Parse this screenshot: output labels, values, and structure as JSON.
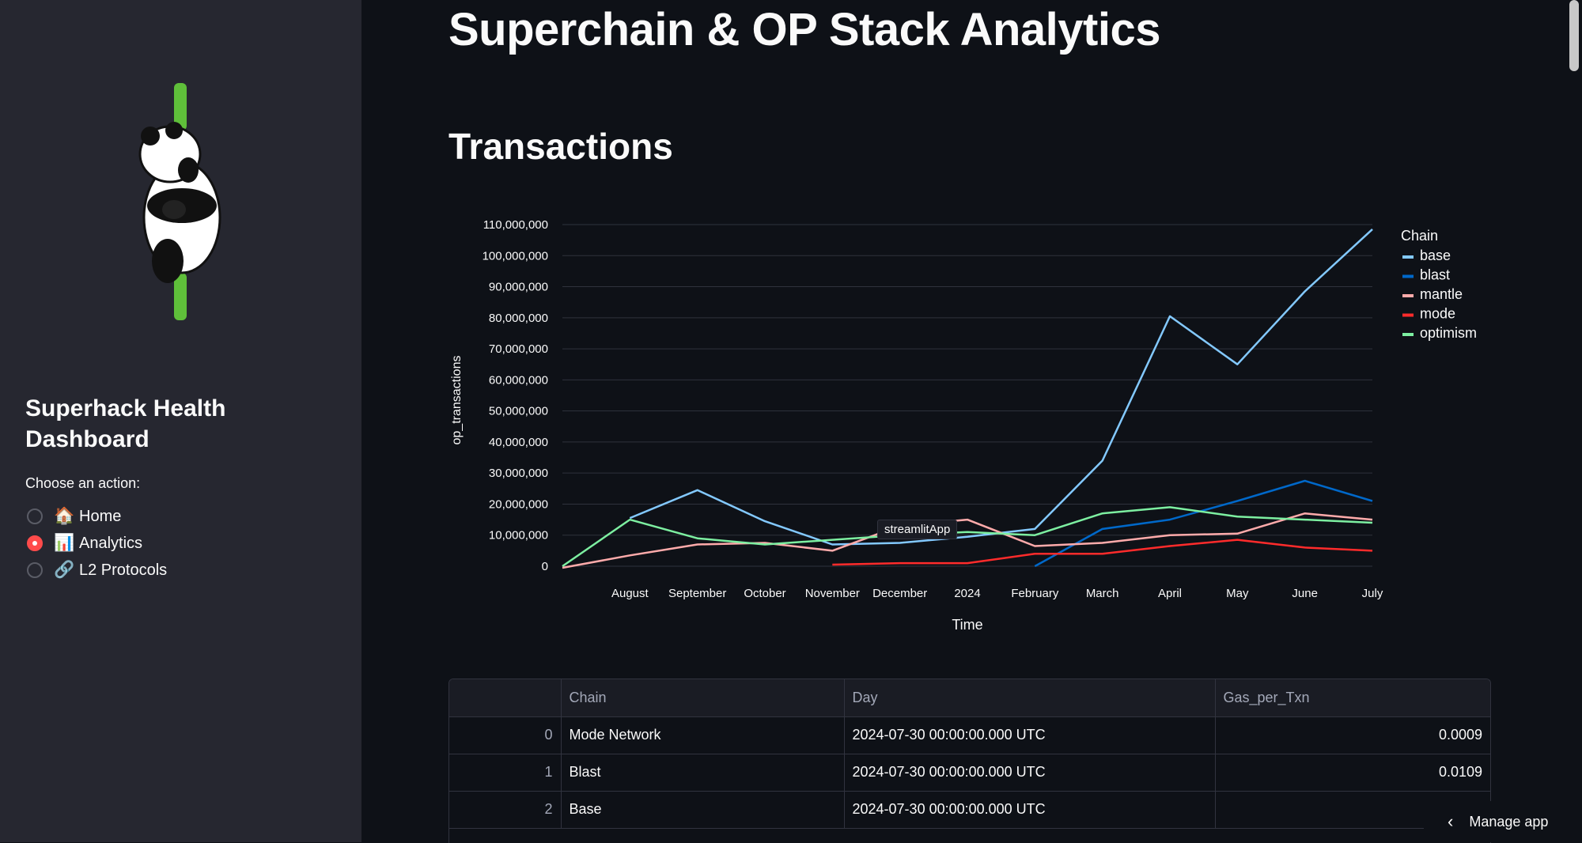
{
  "sidebar": {
    "title": "Superhack Health Dashboard",
    "choose_label": "Choose an action:",
    "options": [
      {
        "icon": "🏠",
        "label": "Home",
        "selected": false
      },
      {
        "icon": "📊",
        "label": "Analytics",
        "selected": true
      },
      {
        "icon": "🔗",
        "label": "L2 Protocols",
        "selected": false
      }
    ]
  },
  "main": {
    "page_title": "Superchain & OP Stack Analytics",
    "section_title": "Transactions"
  },
  "tooltip": "streamlitApp",
  "manage_app": "Manage app",
  "chart_data": {
    "type": "line",
    "xlabel": "Time",
    "ylabel": "op_transactions",
    "legend_title": "Chain",
    "ylim": [
      0,
      110000000
    ],
    "yticks": [
      0,
      10000000,
      20000000,
      30000000,
      40000000,
      50000000,
      60000000,
      70000000,
      80000000,
      90000000,
      100000000,
      110000000
    ],
    "ytick_labels": [
      "0",
      "10,000,000",
      "20,000,000",
      "30,000,000",
      "40,000,000",
      "50,000,000",
      "60,000,000",
      "70,000,000",
      "80,000,000",
      "90,000,000",
      "100,000,000",
      "110,000,000"
    ],
    "x_tick_labels": [
      "August",
      "September",
      "October",
      "November",
      "December",
      "2024",
      "February",
      "March",
      "April",
      "May",
      "June",
      "July"
    ],
    "x_tick_positions": [
      1,
      2,
      3,
      4,
      5,
      6,
      7,
      8,
      9,
      10,
      11,
      12
    ],
    "x": [
      0,
      1,
      2,
      3,
      4,
      5,
      6,
      7,
      8,
      9,
      10,
      11,
      12
    ],
    "series": [
      {
        "name": "base",
        "color": "#83c9ff",
        "values": [
          null,
          15500000,
          24500000,
          14500000,
          7000000,
          7500000,
          9500000,
          12000000,
          34000000,
          80500000,
          65000000,
          88500000,
          108500000
        ]
      },
      {
        "name": "blast",
        "color": "#0068c9",
        "values": [
          null,
          null,
          null,
          null,
          null,
          null,
          null,
          0,
          12000000,
          15000000,
          21000000,
          27500000,
          21000000
        ]
      },
      {
        "name": "mantle",
        "color": "#ffabab",
        "values": [
          -500000,
          3500000,
          7000000,
          7500000,
          5000000,
          13000000,
          15000000,
          6500000,
          7500000,
          10000000,
          10500000,
          17000000,
          15000000
        ]
      },
      {
        "name": "mode",
        "color": "#ff2b2b",
        "values": [
          null,
          null,
          null,
          null,
          500000,
          1000000,
          1000000,
          4000000,
          4000000,
          6500000,
          8500000,
          6000000,
          5000000
        ]
      },
      {
        "name": "optimism",
        "color": "#7defa1",
        "values": [
          0,
          15000000,
          9000000,
          7000000,
          8500000,
          10000000,
          11000000,
          10000000,
          17000000,
          19000000,
          16000000,
          15000000,
          14000000
        ]
      }
    ]
  },
  "table": {
    "columns": [
      "",
      "Chain",
      "Day",
      "Gas_per_Txn"
    ],
    "rows": [
      {
        "index": "0",
        "chain": "Mode Network",
        "day": "2024-07-30 00:00:00.000 UTC",
        "gas": "0.0009"
      },
      {
        "index": "1",
        "chain": "Blast",
        "day": "2024-07-30 00:00:00.000 UTC",
        "gas": "0.0109"
      },
      {
        "index": "2",
        "chain": "Base",
        "day": "2024-07-30 00:00:00.000 UTC",
        "gas": ""
      }
    ]
  }
}
